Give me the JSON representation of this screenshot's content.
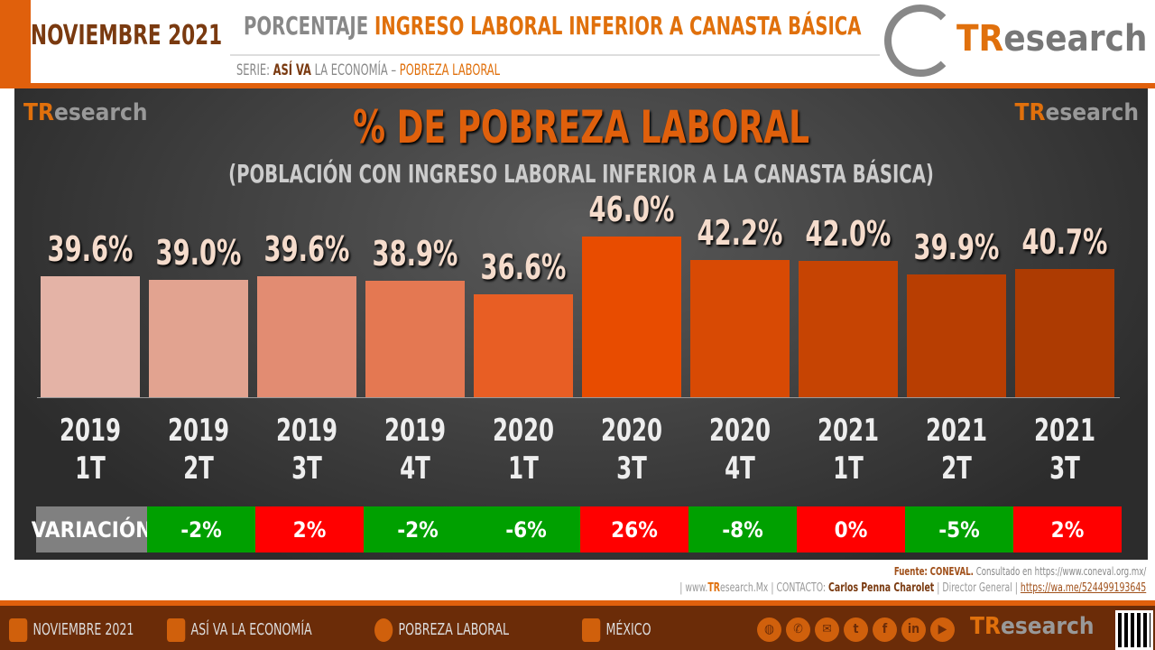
{
  "header": {
    "month": "NOVIEMBRE 2021",
    "title_gray": "PORCENTAJE",
    "title_orange": "INGRESO LABORAL INFERIOR A CANASTA BÁSICA",
    "serie_label": "SERIE:",
    "serie_bold": "ASÍ VA",
    "serie_rest": "LA ECONOMÍA –",
    "serie_topic": "POBREZA LABORAL",
    "logo_prefix": "TR",
    "logo_suffix": "esearch"
  },
  "chart_data": {
    "type": "bar",
    "title": "% DE POBREZA LABORAL",
    "subtitle": "(POBLACIÓN CON INGRESO LABORAL INFERIOR A LA CANASTA BÁSICA)",
    "categories": [
      [
        "2019",
        "1T"
      ],
      [
        "2019",
        "2T"
      ],
      [
        "2019",
        "3T"
      ],
      [
        "2019",
        "4T"
      ],
      [
        "2020",
        "1T"
      ],
      [
        "2020",
        "3T"
      ],
      [
        "2020",
        "4T"
      ],
      [
        "2021",
        "1T"
      ],
      [
        "2021",
        "2T"
      ],
      [
        "2021",
        "3T"
      ]
    ],
    "values": [
      39.6,
      39.0,
      39.6,
      38.9,
      36.6,
      46.0,
      42.2,
      42.0,
      39.9,
      40.7
    ],
    "data_labels": [
      "39.6%",
      "39.0%",
      "39.6%",
      "38.9%",
      "36.6%",
      "46.0%",
      "42.2%",
      "42.0%",
      "39.9%",
      "40.7%"
    ],
    "bar_colors": [
      "#e4b3a6",
      "#e2a390",
      "#e28c72",
      "#e47852",
      "#e85e24",
      "#e84c00",
      "#d84a04",
      "#c64403",
      "#b83e02",
      "#ad3b02"
    ],
    "ylim": [
      20,
      53
    ],
    "grid": false,
    "variation_label": "VARIACIÓN",
    "variation": [
      "-2%",
      "2%",
      "-2%",
      "-6%",
      "26%",
      "-8%",
      "0%",
      "-5%",
      "2%"
    ],
    "variation_colors": [
      "#00a000",
      "#ff0000",
      "#00a000",
      "#00a000",
      "#ff0000",
      "#00a000",
      "#ff0000",
      "#00a000",
      "#ff0000"
    ]
  },
  "source": {
    "label": "Fuente:",
    "name": "CONEVAL.",
    "rest": "Consultado en https://www.coneval.org.mx/"
  },
  "contact": {
    "site_pre": "| www.",
    "site_tr": "TR",
    "site_post": "esearch.Mx | CONTACTO:",
    "person": "Carlos Penna Charolet",
    "role": "| Director General |",
    "link": "https://wa.me/524499193645"
  },
  "footer": {
    "items": [
      "NOVIEMBRE 2021",
      "ASÍ VA LA ECONOMÍA",
      "POBREZA LABORAL",
      "MÉXICO"
    ],
    "social_icons": [
      "globe-icon",
      "phone-icon",
      "mail-icon",
      "twitter-icon",
      "facebook-icon",
      "linkedin-icon",
      "youtube-icon"
    ]
  }
}
